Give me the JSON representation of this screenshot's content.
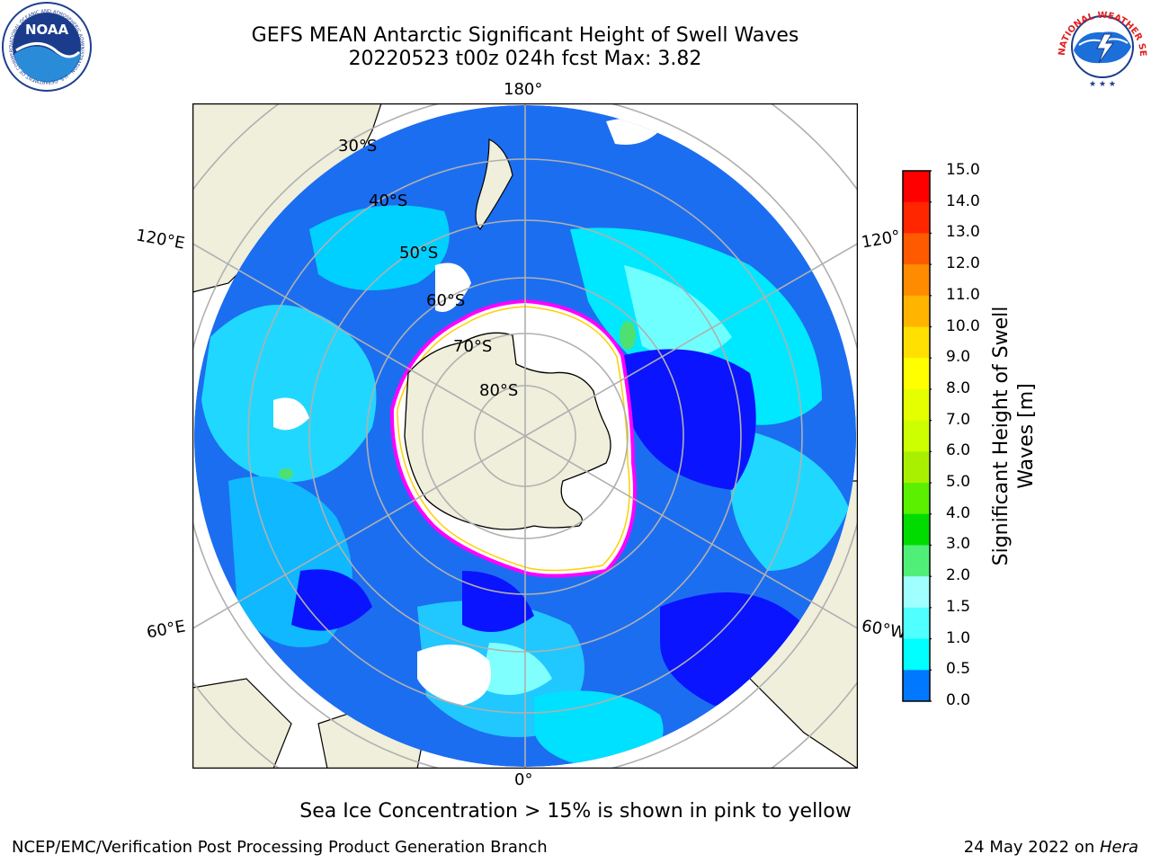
{
  "title": {
    "line1": "GEFS MEAN Antarctic Significant Height of Swell Waves",
    "line2": "20220523 t00z 024h fcst   Max: 3.82"
  },
  "map": {
    "projection": "south-polar-stereographic",
    "meridian_labels": [
      "180°",
      "120°E",
      "120°",
      "60°E",
      "60°W",
      "0°"
    ],
    "parallel_labels": [
      "30°S",
      "40°S",
      "50°S",
      "60°S",
      "70°S",
      "80°S"
    ],
    "colors": {
      "land": "#efefdc",
      "grid": "#b0b0b0",
      "ice_edge": "#ff00ff",
      "ice_inner": "#ffd000"
    }
  },
  "colorbar": {
    "label_line1": "Significant Height of Swell",
    "label_line2": "Waves [m]",
    "ticks": [
      "15.0",
      "14.0",
      "13.0",
      "12.0",
      "11.0",
      "10.0",
      "9.0",
      "8.0",
      "7.0",
      "6.0",
      "5.0",
      "4.0",
      "3.0",
      "2.0",
      "1.5",
      "1.0",
      "0.5",
      "0.0"
    ],
    "band_colors": [
      "#ff0000",
      "#ff2600",
      "#ff5a00",
      "#ff8c00",
      "#ffb400",
      "#ffe000",
      "#ffff00",
      "#e6ff00",
      "#cdff00",
      "#a8f000",
      "#5af000",
      "#00dc00",
      "#50f078",
      "#a0ffff",
      "#50ffff",
      "#00ffff",
      "#0078ff",
      "#0000ff"
    ]
  },
  "note": "Sea Ice Concentration > 15% is shown in pink to yellow",
  "footer": {
    "left": "NCEP/EMC/Verification Post Processing Product Generation Branch",
    "right_prefix": "24 May 2022 on ",
    "right_italic": "Hera"
  },
  "logos": {
    "noaa_text": "NOAA",
    "noaa_ring": "NATIONAL OCEANIC AND ATMOSPHERIC ADMINISTRATION · U.S. DEPARTMENT OF COMMERCE",
    "nws_ring": "NATIONAL WEATHER SERVICE"
  }
}
